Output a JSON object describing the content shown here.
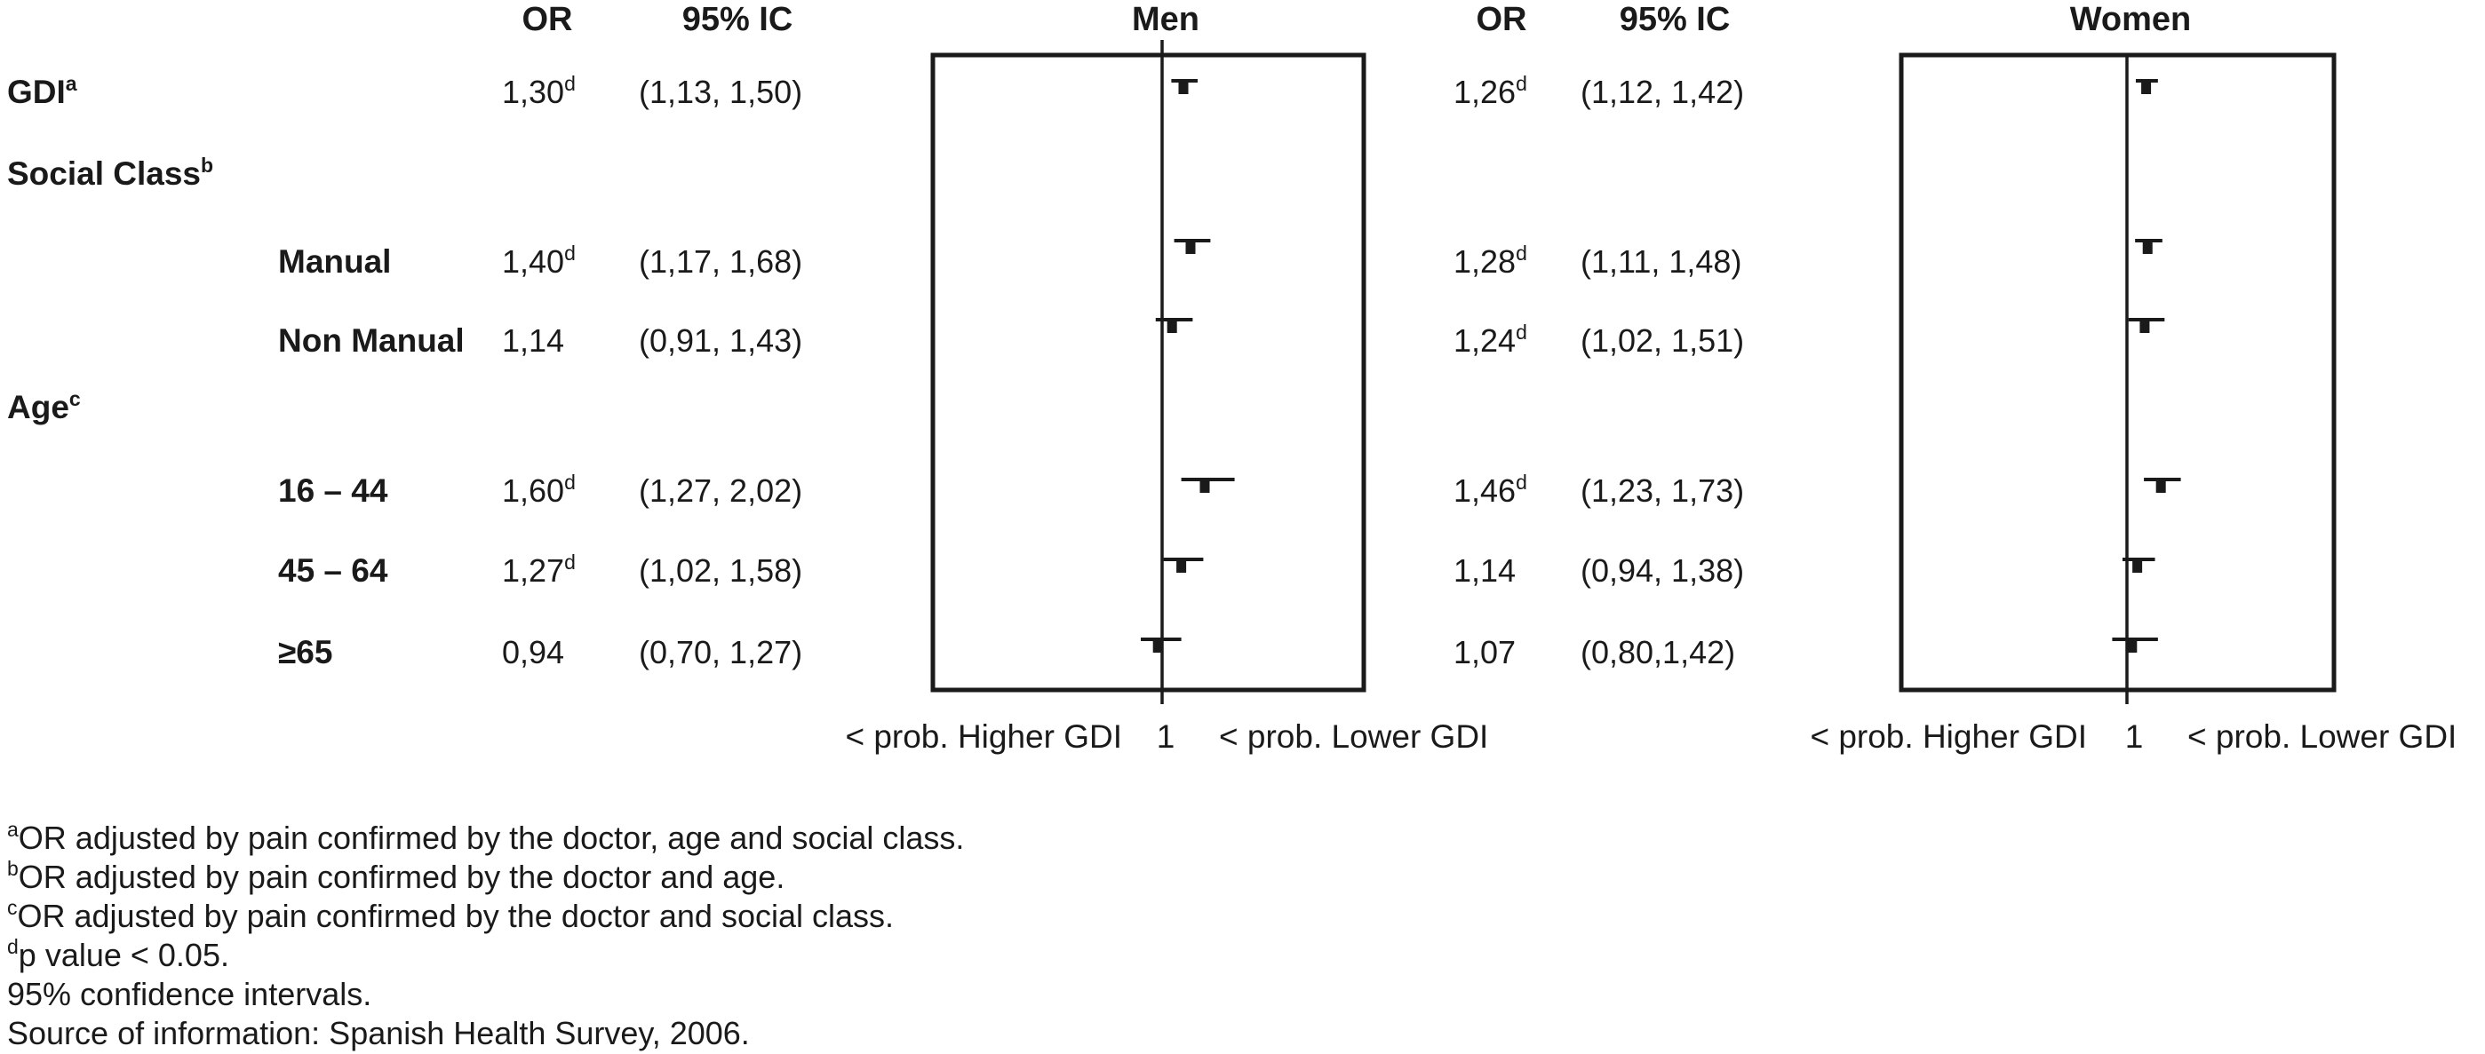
{
  "colors": {
    "ink": "#1a1a1a",
    "background": "#ffffff"
  },
  "header": {
    "or_men": "OR",
    "ic_men": "95% IC",
    "men_title": "Men",
    "or_women": "OR",
    "ic_women": "95% IC",
    "women_title": "Women"
  },
  "table": {
    "rows": [
      {
        "label": "GDI",
        "label_sup": "a",
        "men": {
          "or": "1,30",
          "or_sup": "d",
          "ci": "(1,13, 1,50)"
        },
        "women": {
          "or": "1,26",
          "or_sup": "d",
          "ci": "(1,12, 1,42)"
        }
      },
      {
        "label": "Social Class",
        "label_sup": "b"
      },
      {
        "label": "Manual",
        "men": {
          "or": "1,40",
          "or_sup": "d",
          "ci": "(1,17, 1,68)"
        },
        "women": {
          "or": "1,28",
          "or_sup": "d",
          "ci": "(1,11, 1,48)"
        }
      },
      {
        "label": "Non Manual",
        "men": {
          "or": "1,14",
          "ci": "(0,91, 1,43)"
        },
        "women": {
          "or": "1,24",
          "or_sup": "d",
          "ci": "(1,02, 1,51)"
        }
      },
      {
        "label": "Age",
        "label_sup": "c"
      },
      {
        "label": "16 – 44",
        "men": {
          "or": "1,60",
          "or_sup": "d",
          "ci": "(1,27, 2,02)"
        },
        "women": {
          "or": "1,46",
          "or_sup": "d",
          "ci": "(1,23, 1,73)"
        }
      },
      {
        "label": "45 – 64",
        "men": {
          "or": "1,27",
          "or_sup": "d",
          "ci": "(1,02, 1,58)"
        },
        "women": {
          "or": "1,14",
          "ci": "(0,94, 1,38)"
        }
      },
      {
        "label": "≥65",
        "men": {
          "or": "0,94",
          "ci": "(0,70, 1,27)"
        },
        "women": {
          "or": "1,07",
          "ci": "(0,80,1,42)"
        }
      }
    ]
  },
  "axis_captions": {
    "men": {
      "left": "< prob. Higher GDI",
      "tick": "1",
      "right": "< prob. Lower GDI"
    },
    "women": {
      "left": "< prob. Higher GDI",
      "tick": "1",
      "right": "< prob. Lower GDI"
    }
  },
  "footnotes": [
    {
      "sup": "a",
      "text": "OR adjusted by pain confirmed by the doctor, age and social class."
    },
    {
      "sup": "b",
      "text": "OR adjusted by pain confirmed by the doctor and age."
    },
    {
      "sup": "c",
      "text": "OR adjusted by pain confirmed by the doctor and social class."
    },
    {
      "sup": "d",
      "text": "p value < 0.05."
    },
    {
      "sup": "",
      "text": "95% confidence intervals."
    },
    {
      "sup": "",
      "text": "Source of information: Spanish Health Survey, 2006."
    }
  ],
  "chart_data": [
    {
      "type": "scatter",
      "subtype": "forest-plot",
      "title": "Men",
      "x_reference": 1,
      "tick_label": "1",
      "caption_left": "< prob. Higher GDI",
      "caption_right": "< prob. Lower GDI",
      "points": [
        {
          "label": "GDI",
          "or": 1.3,
          "ci_low": 1.13,
          "ci_high": 1.5,
          "significant": true
        },
        {
          "label": "Manual",
          "or": 1.4,
          "ci_low": 1.17,
          "ci_high": 1.68,
          "significant": true
        },
        {
          "label": "Non Manual",
          "or": 1.14,
          "ci_low": 0.91,
          "ci_high": 1.43,
          "significant": false
        },
        {
          "label": "16 – 44",
          "or": 1.6,
          "ci_low": 1.27,
          "ci_high": 2.02,
          "significant": true
        },
        {
          "label": "45 – 64",
          "or": 1.27,
          "ci_low": 1.02,
          "ci_high": 1.58,
          "significant": true
        },
        {
          "label": "≥65",
          "or": 0.94,
          "ci_low": 0.7,
          "ci_high": 1.27,
          "significant": false
        }
      ]
    },
    {
      "type": "scatter",
      "subtype": "forest-plot",
      "title": "Women",
      "x_reference": 1,
      "tick_label": "1",
      "caption_left": "< prob. Higher GDI",
      "caption_right": "< prob. Lower GDI",
      "points": [
        {
          "label": "GDI",
          "or": 1.26,
          "ci_low": 1.12,
          "ci_high": 1.42,
          "significant": true
        },
        {
          "label": "Manual",
          "or": 1.28,
          "ci_low": 1.11,
          "ci_high": 1.48,
          "significant": true
        },
        {
          "label": "Non Manual",
          "or": 1.24,
          "ci_low": 1.02,
          "ci_high": 1.51,
          "significant": true
        },
        {
          "label": "16 – 44",
          "or": 1.46,
          "ci_low": 1.23,
          "ci_high": 1.73,
          "significant": true
        },
        {
          "label": "45 – 64",
          "or": 1.14,
          "ci_low": 0.94,
          "ci_high": 1.38,
          "significant": false
        },
        {
          "label": "≥65",
          "or": 1.07,
          "ci_low": 0.8,
          "ci_high": 1.42,
          "significant": false
        }
      ]
    }
  ]
}
